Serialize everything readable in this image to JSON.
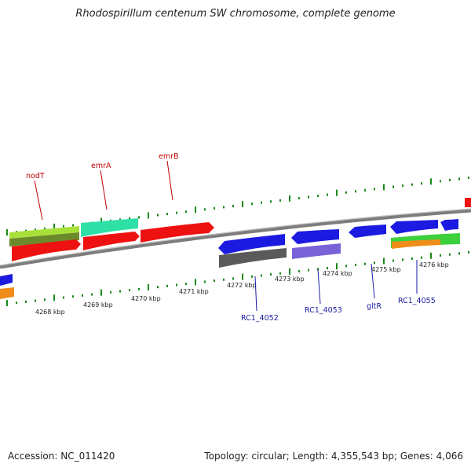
{
  "title": "Rhodospirillum centenum SW chromosome, complete genome",
  "accession": "Accession: NC_011420",
  "summary": "Topology: circular; Length: 4,355,543 bp; Genes: 4,066",
  "colors": {
    "backbone": "#8a8a8a",
    "forward_tick": "#1a8a1a",
    "forward_label": "#c00000",
    "reverse_label": "#1a1aa0"
  },
  "scale_labels": [
    "4268 kbp",
    "4269 kbp",
    "4270 kbp",
    "4271 kbp",
    "4272 kbp",
    "4273 kbp",
    "4274 kbp",
    "4275 kbp",
    "4276 kbp"
  ],
  "forward_gene_labels": [
    "nodT",
    "emrA",
    "emrB"
  ],
  "reverse_gene_labels": [
    "RC1_4052",
    "RC1_4053",
    "gltR",
    "RC1_4055"
  ]
}
